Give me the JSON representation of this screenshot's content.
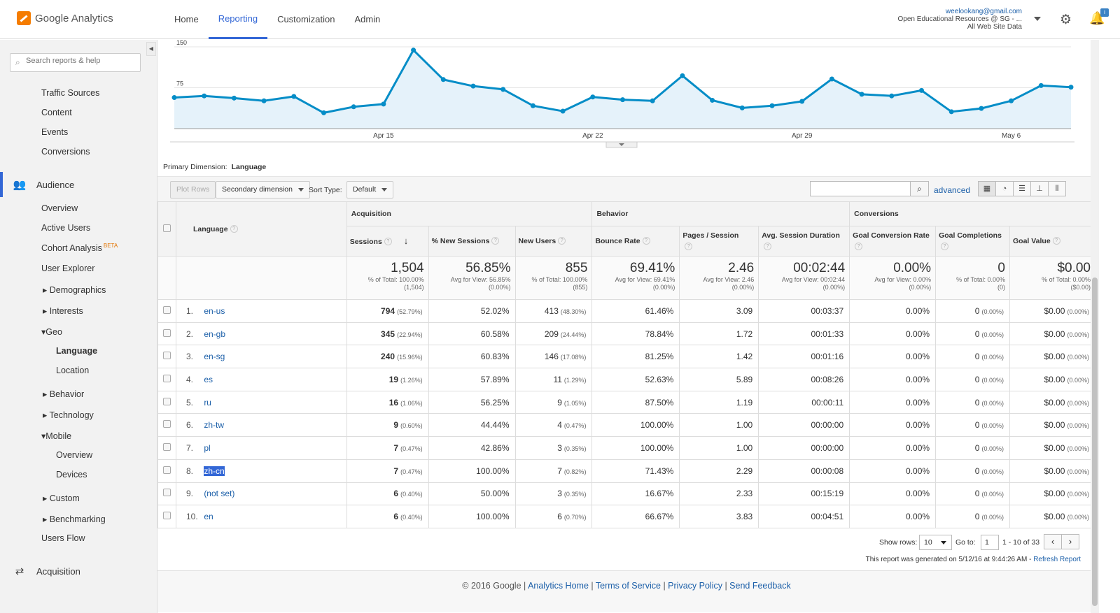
{
  "header": {
    "logo_text": "Google Analytics",
    "nav": [
      {
        "label": "Home"
      },
      {
        "label": "Reporting"
      },
      {
        "label": "Customization"
      },
      {
        "label": "Admin"
      }
    ],
    "account_email": "weelookang@gmail.com",
    "account_property": "Open Educational Resources @ SG - ...",
    "account_view": "All Web Site Data",
    "bell_badge": "i"
  },
  "sidebar": {
    "search_placeholder": "Search reports & help",
    "items_top": [
      "Traffic Sources",
      "Content",
      "Events",
      "Conversions"
    ],
    "audience_label": "Audience",
    "audience_items": {
      "overview": "Overview",
      "active_users": "Active Users",
      "cohort": "Cohort Analysis",
      "beta": "BETA",
      "user_explorer": "User Explorer",
      "demographics": "Demographics",
      "interests": "Interests",
      "geo": "Geo",
      "language": "Language",
      "location": "Location",
      "behavior": "Behavior",
      "technology": "Technology",
      "mobile": "Mobile",
      "mobile_overview": "Overview",
      "devices": "Devices",
      "custom": "Custom",
      "benchmarking": "Benchmarking",
      "users_flow": "Users Flow"
    },
    "acquisition_label": "Acquisition"
  },
  "chart_data": {
    "type": "area",
    "series": [
      {
        "values": [
          57,
          60,
          56,
          51,
          59,
          29,
          40,
          45,
          144,
          90,
          78,
          72,
          42,
          32,
          58,
          53,
          51,
          97,
          52,
          38,
          42,
          50,
          91,
          63,
          60,
          70,
          31,
          37,
          51,
          79,
          76
        ]
      }
    ],
    "x_ticks": [
      "Apr 15",
      "Apr 22",
      "Apr 29",
      "May 6"
    ],
    "y_ticks": [
      "150",
      "75"
    ],
    "ylim": [
      0,
      150
    ]
  },
  "primary_dimension": {
    "label": "Primary Dimension:",
    "value": "Language"
  },
  "toolbar": {
    "plot_rows": "Plot Rows",
    "secondary": "Secondary dimension",
    "sort_label": "Sort Type:",
    "sort_value": "Default",
    "advanced": "advanced"
  },
  "table": {
    "groups": {
      "acquisition": "Acquisition",
      "behavior": "Behavior",
      "conversions": "Conversions"
    },
    "columns": {
      "language": "Language",
      "sessions": "Sessions",
      "new_sessions": "% New Sessions",
      "new_users": "New Users",
      "bounce": "Bounce Rate",
      "pages": "Pages / Session",
      "duration": "Avg. Session Duration",
      "gcr": "Goal Conversion Rate",
      "gc": "Goal Completions",
      "gv": "Goal Value"
    },
    "totals": {
      "sessions": {
        "big": "1,504",
        "s1": "% of Total: 100.00%",
        "s2": "(1,504)"
      },
      "new_sessions": {
        "big": "56.85%",
        "s1": "Avg for View: 56.85%",
        "s2": "(0.00%)"
      },
      "new_users": {
        "big": "855",
        "s1": "% of Total: 100.00%",
        "s2": "(855)"
      },
      "bounce": {
        "big": "69.41%",
        "s1": "Avg for View: 69.41%",
        "s2": "(0.00%)"
      },
      "pages": {
        "big": "2.46",
        "s1": "Avg for View: 2.46",
        "s2": "(0.00%)"
      },
      "duration": {
        "big": "00:02:44",
        "s1": "Avg for View: 00:02:44",
        "s2": "(0.00%)"
      },
      "gcr": {
        "big": "0.00%",
        "s1": "Avg for View: 0.00%",
        "s2": "(0.00%)"
      },
      "gc": {
        "big": "0",
        "s1": "% of Total: 0.00%",
        "s2": "(0)"
      },
      "gv": {
        "big": "$0.00",
        "s1": "% of Total: 0.00%",
        "s2": "($0.00)"
      }
    },
    "rows": [
      {
        "n": "1.",
        "lang": "en-us",
        "s": "794",
        "sp": "(52.79%)",
        "ns": "52.02%",
        "nu": "413",
        "nup": "(48.30%)",
        "br": "61.46%",
        "ps": "3.09",
        "d": "00:03:37",
        "gcr": "0.00%",
        "gc": "0",
        "gcp": "(0.00%)",
        "gv": "$0.00",
        "gvp": "(0.00%)"
      },
      {
        "n": "2.",
        "lang": "en-gb",
        "s": "345",
        "sp": "(22.94%)",
        "ns": "60.58%",
        "nu": "209",
        "nup": "(24.44%)",
        "br": "78.84%",
        "ps": "1.72",
        "d": "00:01:33",
        "gcr": "0.00%",
        "gc": "0",
        "gcp": "(0.00%)",
        "gv": "$0.00",
        "gvp": "(0.00%)"
      },
      {
        "n": "3.",
        "lang": "en-sg",
        "s": "240",
        "sp": "(15.96%)",
        "ns": "60.83%",
        "nu": "146",
        "nup": "(17.08%)",
        "br": "81.25%",
        "ps": "1.42",
        "d": "00:01:16",
        "gcr": "0.00%",
        "gc": "0",
        "gcp": "(0.00%)",
        "gv": "$0.00",
        "gvp": "(0.00%)"
      },
      {
        "n": "4.",
        "lang": "es",
        "s": "19",
        "sp": "(1.26%)",
        "ns": "57.89%",
        "nu": "11",
        "nup": "(1.29%)",
        "br": "52.63%",
        "ps": "5.89",
        "d": "00:08:26",
        "gcr": "0.00%",
        "gc": "0",
        "gcp": "(0.00%)",
        "gv": "$0.00",
        "gvp": "(0.00%)"
      },
      {
        "n": "5.",
        "lang": "ru",
        "s": "16",
        "sp": "(1.06%)",
        "ns": "56.25%",
        "nu": "9",
        "nup": "(1.05%)",
        "br": "87.50%",
        "ps": "1.19",
        "d": "00:00:11",
        "gcr": "0.00%",
        "gc": "0",
        "gcp": "(0.00%)",
        "gv": "$0.00",
        "gvp": "(0.00%)"
      },
      {
        "n": "6.",
        "lang": "zh-tw",
        "s": "9",
        "sp": "(0.60%)",
        "ns": "44.44%",
        "nu": "4",
        "nup": "(0.47%)",
        "br": "100.00%",
        "ps": "1.00",
        "d": "00:00:00",
        "gcr": "0.00%",
        "gc": "0",
        "gcp": "(0.00%)",
        "gv": "$0.00",
        "gvp": "(0.00%)"
      },
      {
        "n": "7.",
        "lang": "pl",
        "s": "7",
        "sp": "(0.47%)",
        "ns": "42.86%",
        "nu": "3",
        "nup": "(0.35%)",
        "br": "100.00%",
        "ps": "1.00",
        "d": "00:00:00",
        "gcr": "0.00%",
        "gc": "0",
        "gcp": "(0.00%)",
        "gv": "$0.00",
        "gvp": "(0.00%)"
      },
      {
        "n": "8.",
        "lang": "zh-cn",
        "s": "7",
        "sp": "(0.47%)",
        "ns": "100.00%",
        "nu": "7",
        "nup": "(0.82%)",
        "br": "71.43%",
        "ps": "2.29",
        "d": "00:00:08",
        "gcr": "0.00%",
        "gc": "0",
        "gcp": "(0.00%)",
        "gv": "$0.00",
        "gvp": "(0.00%)"
      },
      {
        "n": "9.",
        "lang": "(not set)",
        "s": "6",
        "sp": "(0.40%)",
        "ns": "50.00%",
        "nu": "3",
        "nup": "(0.35%)",
        "br": "16.67%",
        "ps": "2.33",
        "d": "00:15:19",
        "gcr": "0.00%",
        "gc": "0",
        "gcp": "(0.00%)",
        "gv": "$0.00",
        "gvp": "(0.00%)"
      },
      {
        "n": "10.",
        "lang": "en",
        "s": "6",
        "sp": "(0.40%)",
        "ns": "100.00%",
        "nu": "6",
        "nup": "(0.70%)",
        "br": "66.67%",
        "ps": "3.83",
        "d": "00:04:51",
        "gcr": "0.00%",
        "gc": "0",
        "gcp": "(0.00%)",
        "gv": "$0.00",
        "gvp": "(0.00%)"
      }
    ]
  },
  "pager": {
    "show_rows": "Show rows:",
    "rows_value": "10",
    "goto": "Go to:",
    "goto_value": "1",
    "range": "1 - 10 of 33"
  },
  "generated": {
    "text": "This report was generated on 5/12/16 at 9:44:26 AM -",
    "refresh": "Refresh Report"
  },
  "footer": {
    "copyright": "© 2016 Google",
    "links": [
      "Analytics Home",
      "Terms of Service",
      "Privacy Policy",
      "Send Feedback"
    ]
  }
}
